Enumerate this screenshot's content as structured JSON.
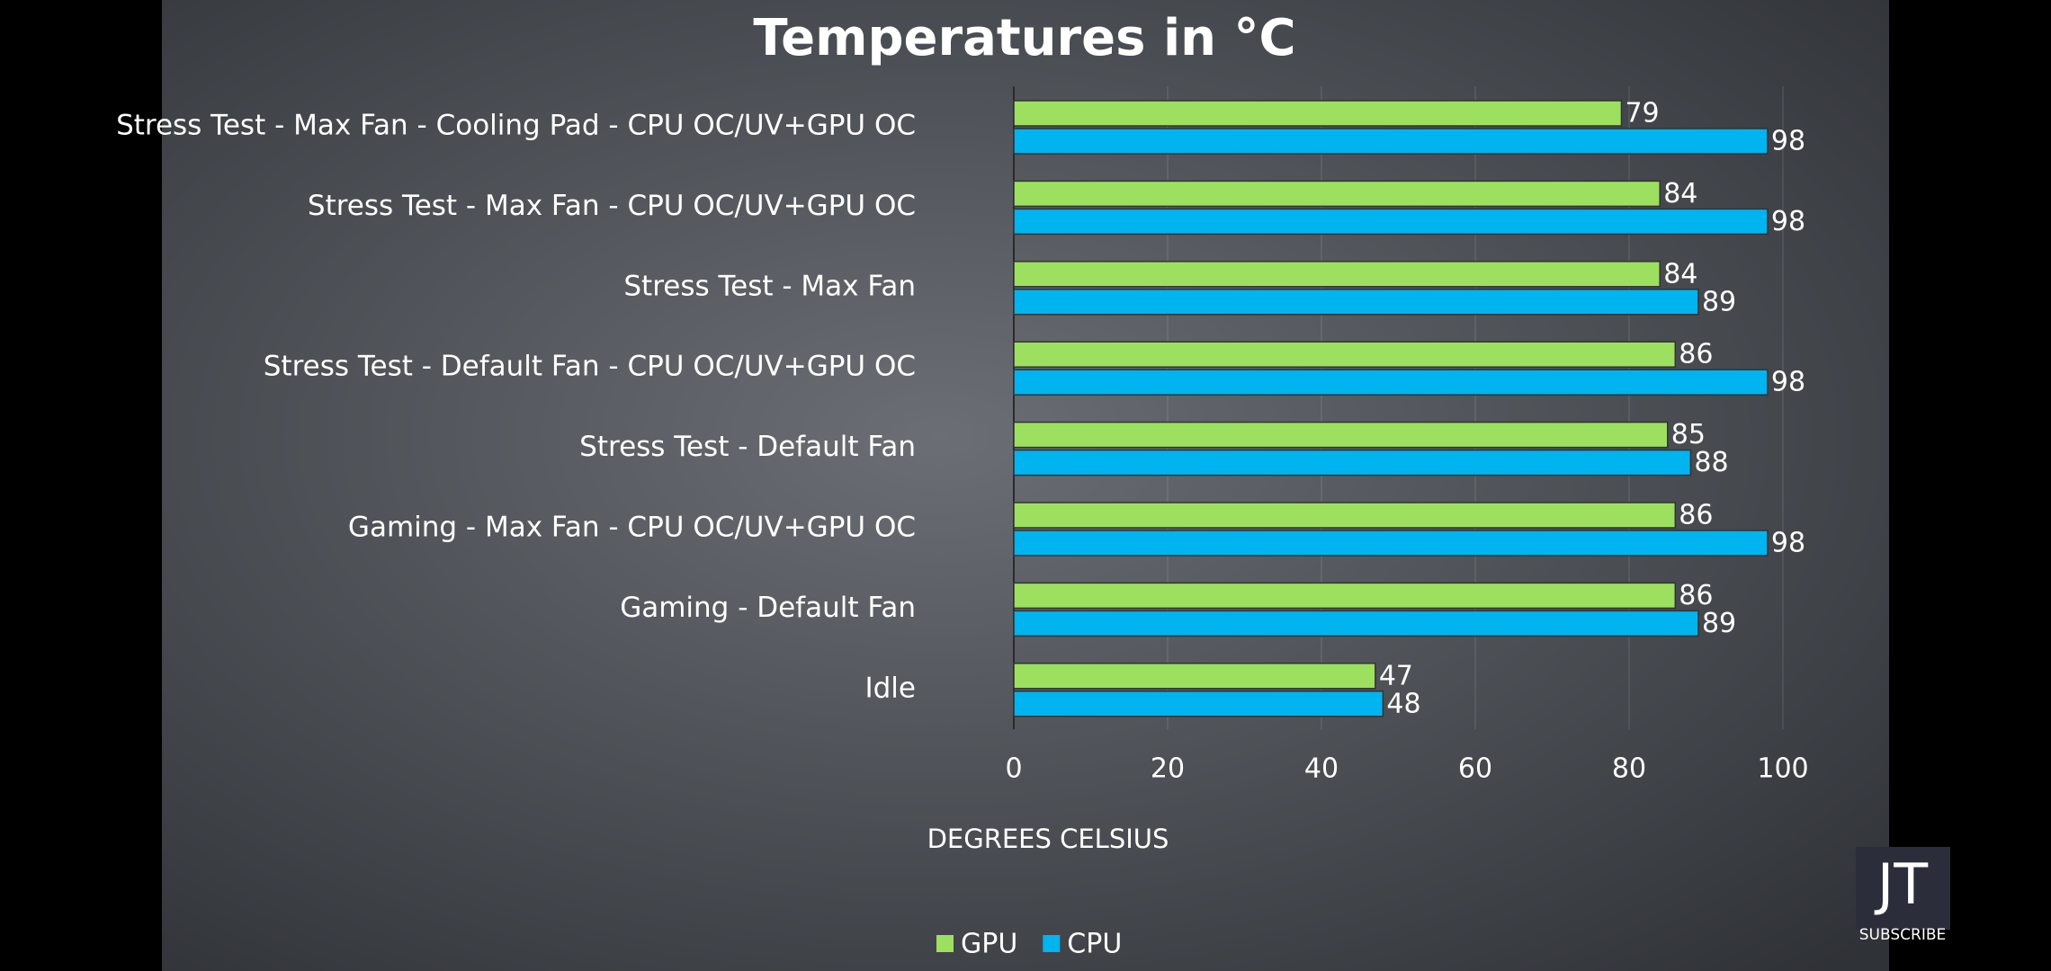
{
  "chart_data": {
    "type": "bar",
    "orientation": "horizontal",
    "title": "Temperatures in °C",
    "categories": [
      "Stress Test - Max Fan - Cooling Pad - CPU OC/UV+GPU OC",
      "Stress Test - Max Fan - CPU OC/UV+GPU OC",
      "Stress Test - Max Fan",
      "Stress Test - Default Fan - CPU OC/UV+GPU OC",
      "Stress Test - Default Fan",
      "Gaming - Max Fan - CPU OC/UV+GPU OC",
      "Gaming - Default Fan",
      "Idle"
    ],
    "series": [
      {
        "name": "GPU",
        "color": "#9de060",
        "values": [
          79,
          84,
          84,
          86,
          85,
          86,
          86,
          47
        ]
      },
      {
        "name": "CPU",
        "color": "#00b4ef",
        "values": [
          98,
          98,
          89,
          98,
          88,
          98,
          89,
          48
        ]
      }
    ],
    "xlabel": "DEGREES CELSIUS",
    "xlim": [
      0,
      100
    ],
    "xticks": [
      0,
      20,
      40,
      60,
      80,
      100
    ],
    "grid": true,
    "legend": "bottom"
  },
  "logo": {
    "mark": "JT",
    "caption": "SUBSCRIBE"
  }
}
